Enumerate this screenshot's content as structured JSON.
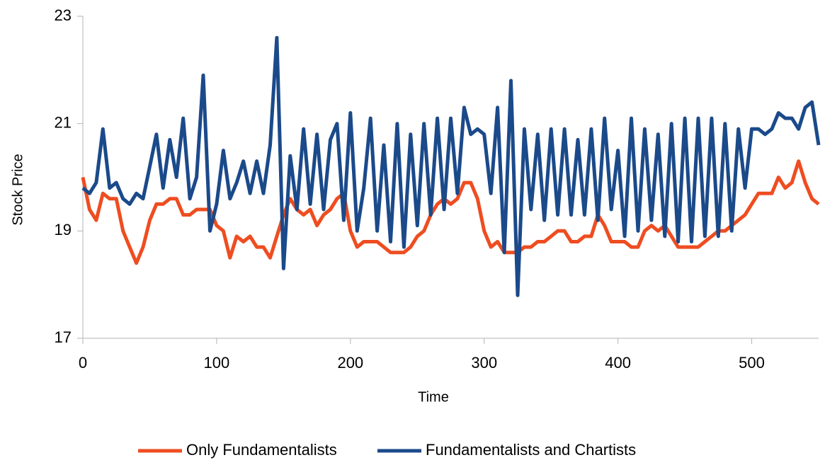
{
  "chart_data": {
    "type": "line",
    "xlabel": "Time",
    "ylabel": "Stock Price",
    "x": [
      0,
      5,
      10,
      15,
      20,
      25,
      30,
      35,
      40,
      45,
      50,
      55,
      60,
      65,
      70,
      75,
      80,
      85,
      90,
      95,
      100,
      105,
      110,
      115,
      120,
      125,
      130,
      135,
      140,
      145,
      150,
      155,
      160,
      165,
      170,
      175,
      180,
      185,
      190,
      195,
      200,
      205,
      210,
      215,
      220,
      225,
      230,
      235,
      240,
      245,
      250,
      255,
      260,
      265,
      270,
      275,
      280,
      285,
      290,
      295,
      300,
      305,
      310,
      315,
      320,
      325,
      330,
      335,
      340,
      345,
      350,
      355,
      360,
      365,
      370,
      375,
      380,
      385,
      390,
      395,
      400,
      405,
      410,
      415,
      420,
      425,
      430,
      435,
      440,
      445,
      450,
      455,
      460,
      465,
      470,
      475,
      480,
      485,
      490,
      495,
      500,
      505,
      510,
      515,
      520,
      525,
      530,
      535,
      540,
      545,
      550
    ],
    "series": [
      {
        "name": "Only Fundamentalists",
        "color": "#ee4d21",
        "values": [
          20.0,
          19.4,
          19.2,
          19.7,
          19.6,
          19.6,
          19.0,
          18.7,
          18.4,
          18.7,
          19.2,
          19.5,
          19.5,
          19.6,
          19.6,
          19.3,
          19.3,
          19.4,
          19.4,
          19.4,
          19.1,
          19.0,
          18.5,
          18.9,
          18.8,
          18.9,
          18.7,
          18.7,
          18.5,
          18.9,
          19.3,
          19.6,
          19.4,
          19.3,
          19.4,
          19.1,
          19.3,
          19.4,
          19.6,
          19.7,
          19.0,
          18.7,
          18.8,
          18.8,
          18.8,
          18.7,
          18.6,
          18.6,
          18.6,
          18.7,
          18.9,
          19.0,
          19.3,
          19.5,
          19.6,
          19.5,
          19.6,
          19.9,
          19.9,
          19.6,
          19.0,
          18.7,
          18.8,
          18.6,
          18.6,
          18.6,
          18.7,
          18.7,
          18.8,
          18.8,
          18.9,
          19.0,
          19.0,
          18.8,
          18.8,
          18.9,
          18.9,
          19.3,
          19.1,
          18.8,
          18.8,
          18.8,
          18.7,
          18.7,
          19.0,
          19.1,
          19.0,
          19.1,
          18.9,
          18.7,
          18.7,
          18.7,
          18.7,
          18.8,
          18.9,
          19.0,
          19.0,
          19.1,
          19.2,
          19.3,
          19.5,
          19.7,
          19.7,
          19.7,
          20.0,
          19.8,
          19.9,
          20.3,
          19.9,
          19.6,
          19.5
        ]
      },
      {
        "name": "Fundamentalists and Chartists",
        "color": "#1b4a8a",
        "values": [
          19.8,
          19.7,
          19.9,
          20.9,
          19.8,
          19.9,
          19.6,
          19.5,
          19.7,
          19.6,
          20.2,
          20.8,
          19.8,
          20.7,
          20.0,
          21.1,
          19.6,
          20.0,
          21.9,
          19.0,
          19.5,
          20.5,
          19.6,
          19.9,
          20.3,
          19.7,
          20.3,
          19.7,
          20.6,
          22.6,
          18.3,
          20.4,
          19.4,
          20.9,
          19.5,
          20.8,
          19.4,
          20.7,
          21.0,
          19.2,
          21.2,
          19.0,
          19.8,
          21.1,
          19.0,
          20.6,
          18.8,
          21.0,
          18.7,
          20.8,
          19.1,
          21.0,
          19.3,
          21.1,
          19.4,
          21.1,
          19.7,
          21.3,
          20.8,
          20.9,
          20.8,
          19.7,
          21.3,
          18.6,
          21.8,
          17.8,
          20.9,
          19.4,
          20.8,
          19.2,
          20.9,
          19.3,
          20.9,
          19.3,
          20.7,
          19.3,
          20.9,
          19.2,
          21.1,
          19.4,
          20.5,
          18.9,
          21.1,
          19.0,
          20.9,
          19.2,
          20.8,
          18.9,
          21.0,
          18.8,
          21.1,
          18.8,
          21.1,
          18.9,
          21.1,
          18.9,
          21.0,
          19.0,
          20.9,
          19.8,
          20.9,
          20.9,
          20.8,
          20.9,
          21.2,
          21.1,
          21.1,
          20.9,
          21.3,
          21.4,
          20.6
        ]
      }
    ],
    "xlim": [
      0,
      550
    ],
    "xticks": [
      0,
      100,
      200,
      300,
      400,
      500
    ],
    "ylim": [
      17,
      23
    ],
    "yticks": [
      17,
      19,
      21,
      23
    ],
    "grid": false,
    "legend": "bottom"
  }
}
